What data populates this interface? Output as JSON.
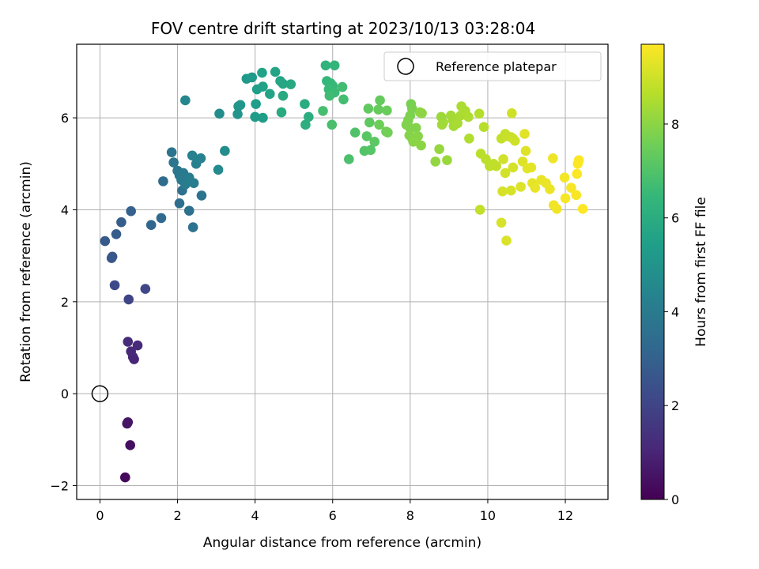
{
  "chart_data": {
    "type": "scatter",
    "title": "FOV centre drift starting at 2023/10/13 03:28:04",
    "xlabel": "Angular distance from reference (arcmin)",
    "ylabel": "Rotation from reference (arcmin)",
    "xlim": [
      -0.6,
      13.1
    ],
    "ylim": [
      -2.3,
      7.6
    ],
    "xticks": [
      0,
      2,
      4,
      6,
      8,
      10,
      12
    ],
    "yticks": [
      -2,
      0,
      2,
      4,
      6
    ],
    "grid": true,
    "legend": {
      "placement": "top-right",
      "entries": [
        "Reference platepar"
      ]
    },
    "reference_point": {
      "x": 0,
      "y": 0
    },
    "colorbar": {
      "label": "Hours from first FF file",
      "range": [
        0,
        9.7
      ],
      "ticks": [
        0,
        2,
        4,
        6,
        8
      ],
      "colormap": "viridis"
    },
    "points": [
      {
        "x": 0.65,
        "y": -1.82,
        "t": 0.2
      },
      {
        "x": 0.78,
        "y": -1.12,
        "t": 0.4
      },
      {
        "x": 0.7,
        "y": -0.65,
        "t": 0.5
      },
      {
        "x": 0.72,
        "y": -0.62,
        "t": 0.55
      },
      {
        "x": 0.88,
        "y": 0.75,
        "t": 1.0
      },
      {
        "x": 0.85,
        "y": 0.8,
        "t": 1.05
      },
      {
        "x": 0.8,
        "y": 0.92,
        "t": 1.1
      },
      {
        "x": 0.97,
        "y": 1.05,
        "t": 1.15
      },
      {
        "x": 0.72,
        "y": 1.13,
        "t": 1.2
      },
      {
        "x": 0.74,
        "y": 2.05,
        "t": 2.0
      },
      {
        "x": 1.17,
        "y": 2.28,
        "t": 2.1
      },
      {
        "x": 0.38,
        "y": 2.36,
        "t": 2.2
      },
      {
        "x": 0.3,
        "y": 2.95,
        "t": 2.6
      },
      {
        "x": 0.32,
        "y": 2.98,
        "t": 2.65
      },
      {
        "x": 0.13,
        "y": 3.32,
        "t": 2.7
      },
      {
        "x": 0.42,
        "y": 3.47,
        "t": 2.8
      },
      {
        "x": 0.55,
        "y": 3.73,
        "t": 2.9
      },
      {
        "x": 0.8,
        "y": 3.97,
        "t": 3.0
      },
      {
        "x": 1.32,
        "y": 3.67,
        "t": 3.2
      },
      {
        "x": 1.58,
        "y": 3.82,
        "t": 3.3
      },
      {
        "x": 1.63,
        "y": 4.62,
        "t": 3.4
      },
      {
        "x": 2.05,
        "y": 4.14,
        "t": 3.5
      },
      {
        "x": 2.12,
        "y": 4.42,
        "t": 3.55
      },
      {
        "x": 2.3,
        "y": 3.98,
        "t": 3.6
      },
      {
        "x": 2.4,
        "y": 3.62,
        "t": 3.65
      },
      {
        "x": 2.62,
        "y": 4.31,
        "t": 3.7
      },
      {
        "x": 1.85,
        "y": 5.25,
        "t": 3.75
      },
      {
        "x": 1.9,
        "y": 5.03,
        "t": 3.8
      },
      {
        "x": 2.0,
        "y": 4.85,
        "t": 3.85
      },
      {
        "x": 2.05,
        "y": 4.75,
        "t": 3.9
      },
      {
        "x": 2.1,
        "y": 4.65,
        "t": 3.95
      },
      {
        "x": 2.15,
        "y": 4.8,
        "t": 4.0
      },
      {
        "x": 2.2,
        "y": 4.55,
        "t": 4.05
      },
      {
        "x": 2.3,
        "y": 4.7,
        "t": 4.1
      },
      {
        "x": 2.42,
        "y": 4.58,
        "t": 4.15
      },
      {
        "x": 2.48,
        "y": 5.0,
        "t": 4.2
      },
      {
        "x": 2.38,
        "y": 5.18,
        "t": 4.25
      },
      {
        "x": 2.6,
        "y": 5.12,
        "t": 4.3
      },
      {
        "x": 2.2,
        "y": 6.38,
        "t": 4.5
      },
      {
        "x": 3.05,
        "y": 4.87,
        "t": 4.6
      },
      {
        "x": 3.22,
        "y": 5.28,
        "t": 4.7
      },
      {
        "x": 3.08,
        "y": 6.09,
        "t": 4.75
      },
      {
        "x": 3.55,
        "y": 6.08,
        "t": 5.0
      },
      {
        "x": 3.57,
        "y": 6.25,
        "t": 5.05
      },
      {
        "x": 3.62,
        "y": 6.28,
        "t": 5.1
      },
      {
        "x": 3.78,
        "y": 6.85,
        "t": 5.2
      },
      {
        "x": 3.92,
        "y": 6.88,
        "t": 5.25
      },
      {
        "x": 4.0,
        "y": 6.02,
        "t": 5.3
      },
      {
        "x": 4.2,
        "y": 6.0,
        "t": 5.35
      },
      {
        "x": 4.02,
        "y": 6.3,
        "t": 5.4
      },
      {
        "x": 4.05,
        "y": 6.62,
        "t": 5.45
      },
      {
        "x": 4.2,
        "y": 6.68,
        "t": 5.5
      },
      {
        "x": 4.18,
        "y": 6.98,
        "t": 5.55
      },
      {
        "x": 4.38,
        "y": 6.52,
        "t": 5.6
      },
      {
        "x": 4.52,
        "y": 7.0,
        "t": 5.65
      },
      {
        "x": 4.65,
        "y": 6.8,
        "t": 5.7
      },
      {
        "x": 4.72,
        "y": 6.74,
        "t": 5.75
      },
      {
        "x": 4.92,
        "y": 6.73,
        "t": 5.8
      },
      {
        "x": 4.72,
        "y": 6.48,
        "t": 5.85
      },
      {
        "x": 4.68,
        "y": 6.12,
        "t": 5.9
      },
      {
        "x": 5.28,
        "y": 6.3,
        "t": 6.0
      },
      {
        "x": 5.38,
        "y": 6.02,
        "t": 6.05
      },
      {
        "x": 5.3,
        "y": 5.85,
        "t": 6.1
      },
      {
        "x": 5.82,
        "y": 7.14,
        "t": 6.3
      },
      {
        "x": 6.05,
        "y": 7.14,
        "t": 6.35
      },
      {
        "x": 5.85,
        "y": 6.8,
        "t": 6.4
      },
      {
        "x": 5.95,
        "y": 6.75,
        "t": 6.45
      },
      {
        "x": 6.0,
        "y": 6.7,
        "t": 6.5
      },
      {
        "x": 5.9,
        "y": 6.62,
        "t": 6.55
      },
      {
        "x": 6.05,
        "y": 6.55,
        "t": 6.6
      },
      {
        "x": 5.92,
        "y": 6.48,
        "t": 6.65
      },
      {
        "x": 6.25,
        "y": 6.67,
        "t": 6.7
      },
      {
        "x": 6.28,
        "y": 6.4,
        "t": 6.75
      },
      {
        "x": 5.75,
        "y": 6.15,
        "t": 6.8
      },
      {
        "x": 5.98,
        "y": 5.85,
        "t": 6.85
      },
      {
        "x": 6.42,
        "y": 5.1,
        "t": 6.9
      },
      {
        "x": 6.58,
        "y": 5.68,
        "t": 7.0
      },
      {
        "x": 6.82,
        "y": 5.28,
        "t": 7.05
      },
      {
        "x": 6.98,
        "y": 5.3,
        "t": 7.1
      },
      {
        "x": 6.88,
        "y": 5.6,
        "t": 7.15
      },
      {
        "x": 7.08,
        "y": 5.48,
        "t": 7.2
      },
      {
        "x": 6.95,
        "y": 5.9,
        "t": 7.25
      },
      {
        "x": 6.92,
        "y": 6.2,
        "t": 7.3
      },
      {
        "x": 7.22,
        "y": 6.38,
        "t": 7.35
      },
      {
        "x": 7.18,
        "y": 6.18,
        "t": 7.4
      },
      {
        "x": 7.4,
        "y": 6.16,
        "t": 7.45
      },
      {
        "x": 7.2,
        "y": 5.85,
        "t": 7.5
      },
      {
        "x": 7.38,
        "y": 5.7,
        "t": 7.55
      },
      {
        "x": 7.42,
        "y": 5.68,
        "t": 7.6
      },
      {
        "x": 8.02,
        "y": 6.3,
        "t": 7.7
      },
      {
        "x": 8.05,
        "y": 6.2,
        "t": 7.72
      },
      {
        "x": 8.0,
        "y": 6.05,
        "t": 7.75
      },
      {
        "x": 7.95,
        "y": 5.95,
        "t": 7.78
      },
      {
        "x": 7.9,
        "y": 5.85,
        "t": 7.8
      },
      {
        "x": 8.0,
        "y": 5.78,
        "t": 7.82
      },
      {
        "x": 8.15,
        "y": 5.78,
        "t": 7.85
      },
      {
        "x": 7.98,
        "y": 5.62,
        "t": 7.88
      },
      {
        "x": 8.05,
        "y": 5.55,
        "t": 7.9
      },
      {
        "x": 8.2,
        "y": 5.6,
        "t": 7.92
      },
      {
        "x": 8.08,
        "y": 5.48,
        "t": 7.95
      },
      {
        "x": 8.28,
        "y": 5.4,
        "t": 7.98
      },
      {
        "x": 8.25,
        "y": 6.12,
        "t": 8.0
      },
      {
        "x": 8.3,
        "y": 6.1,
        "t": 8.02
      },
      {
        "x": 8.65,
        "y": 5.05,
        "t": 8.1
      },
      {
        "x": 8.75,
        "y": 5.32,
        "t": 8.15
      },
      {
        "x": 8.95,
        "y": 5.08,
        "t": 8.2
      },
      {
        "x": 8.8,
        "y": 6.02,
        "t": 8.25
      },
      {
        "x": 8.85,
        "y": 5.9,
        "t": 8.28
      },
      {
        "x": 8.82,
        "y": 5.85,
        "t": 8.3
      },
      {
        "x": 9.05,
        "y": 6.05,
        "t": 8.35
      },
      {
        "x": 9.1,
        "y": 5.95,
        "t": 8.38
      },
      {
        "x": 9.12,
        "y": 5.82,
        "t": 8.4
      },
      {
        "x": 9.22,
        "y": 5.88,
        "t": 8.42
      },
      {
        "x": 9.3,
        "y": 6.05,
        "t": 8.45
      },
      {
        "x": 9.32,
        "y": 6.25,
        "t": 8.48
      },
      {
        "x": 9.42,
        "y": 6.15,
        "t": 8.5
      },
      {
        "x": 9.5,
        "y": 6.02,
        "t": 8.52
      },
      {
        "x": 9.52,
        "y": 5.55,
        "t": 8.55
      },
      {
        "x": 9.78,
        "y": 6.09,
        "t": 8.6
      },
      {
        "x": 9.9,
        "y": 5.8,
        "t": 8.65
      },
      {
        "x": 9.82,
        "y": 5.22,
        "t": 8.7
      },
      {
        "x": 9.95,
        "y": 5.1,
        "t": 8.72
      },
      {
        "x": 10.05,
        "y": 4.95,
        "t": 8.75
      },
      {
        "x": 10.15,
        "y": 5.0,
        "t": 8.78
      },
      {
        "x": 10.22,
        "y": 4.95,
        "t": 8.8
      },
      {
        "x": 9.8,
        "y": 4.0,
        "t": 8.82
      },
      {
        "x": 10.35,
        "y": 5.55,
        "t": 8.85
      },
      {
        "x": 10.45,
        "y": 5.65,
        "t": 8.88
      },
      {
        "x": 10.5,
        "y": 5.6,
        "t": 8.9
      },
      {
        "x": 10.6,
        "y": 5.58,
        "t": 8.92
      },
      {
        "x": 10.65,
        "y": 5.55,
        "t": 8.95
      },
      {
        "x": 10.7,
        "y": 5.5,
        "t": 8.98
      },
      {
        "x": 10.62,
        "y": 6.1,
        "t": 9.0
      },
      {
        "x": 10.4,
        "y": 5.1,
        "t": 9.02
      },
      {
        "x": 10.45,
        "y": 4.8,
        "t": 9.05
      },
      {
        "x": 10.65,
        "y": 4.92,
        "t": 9.08
      },
      {
        "x": 10.38,
        "y": 4.4,
        "t": 9.1
      },
      {
        "x": 10.6,
        "y": 4.42,
        "t": 9.12
      },
      {
        "x": 10.35,
        "y": 3.72,
        "t": 9.15
      },
      {
        "x": 10.48,
        "y": 3.33,
        "t": 9.18
      },
      {
        "x": 10.85,
        "y": 4.5,
        "t": 9.2
      },
      {
        "x": 10.9,
        "y": 5.05,
        "t": 9.22
      },
      {
        "x": 10.98,
        "y": 5.28,
        "t": 9.25
      },
      {
        "x": 10.95,
        "y": 5.65,
        "t": 9.28
      },
      {
        "x": 11.02,
        "y": 4.9,
        "t": 9.3
      },
      {
        "x": 11.12,
        "y": 4.92,
        "t": 9.32
      },
      {
        "x": 11.15,
        "y": 4.58,
        "t": 9.35
      },
      {
        "x": 11.22,
        "y": 4.48,
        "t": 9.38
      },
      {
        "x": 11.38,
        "y": 4.65,
        "t": 9.4
      },
      {
        "x": 11.5,
        "y": 4.58,
        "t": 9.42
      },
      {
        "x": 11.6,
        "y": 4.45,
        "t": 9.45
      },
      {
        "x": 11.68,
        "y": 5.12,
        "t": 9.48
      },
      {
        "x": 11.7,
        "y": 4.1,
        "t": 9.5
      },
      {
        "x": 11.78,
        "y": 4.02,
        "t": 9.52
      },
      {
        "x": 11.98,
        "y": 4.7,
        "t": 9.55
      },
      {
        "x": 12.0,
        "y": 4.25,
        "t": 9.58
      },
      {
        "x": 12.15,
        "y": 4.48,
        "t": 9.6
      },
      {
        "x": 12.28,
        "y": 4.32,
        "t": 9.62
      },
      {
        "x": 12.3,
        "y": 4.78,
        "t": 9.65
      },
      {
        "x": 12.32,
        "y": 5.0,
        "t": 9.67
      },
      {
        "x": 12.35,
        "y": 5.08,
        "t": 9.68
      },
      {
        "x": 12.45,
        "y": 4.02,
        "t": 9.7
      }
    ]
  }
}
